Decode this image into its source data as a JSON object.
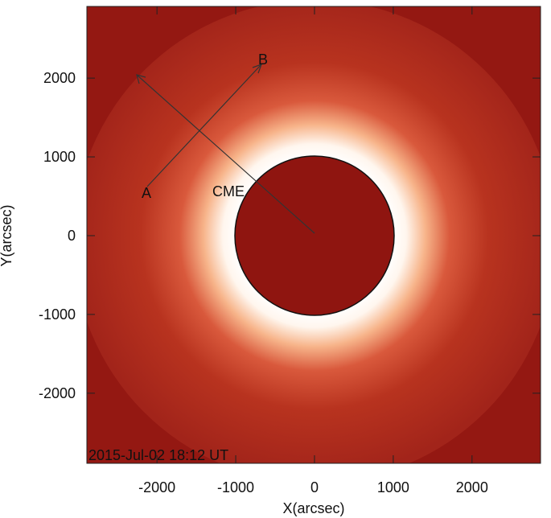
{
  "chart_data": {
    "type": "image",
    "xlabel": "X(arcsec)",
    "ylabel": "Y(arcsec)",
    "xlim": [
      -2890,
      2870
    ],
    "ylim": [
      -2890,
      2910
    ],
    "xticks": [
      -2000,
      -1000,
      0,
      1000,
      2000
    ],
    "yticks": [
      -2000,
      -1000,
      0,
      1000,
      2000
    ],
    "annotations": [
      "A",
      "B",
      "CME"
    ],
    "timestamp": "2015-Jul-02 18:12 UT"
  }
}
